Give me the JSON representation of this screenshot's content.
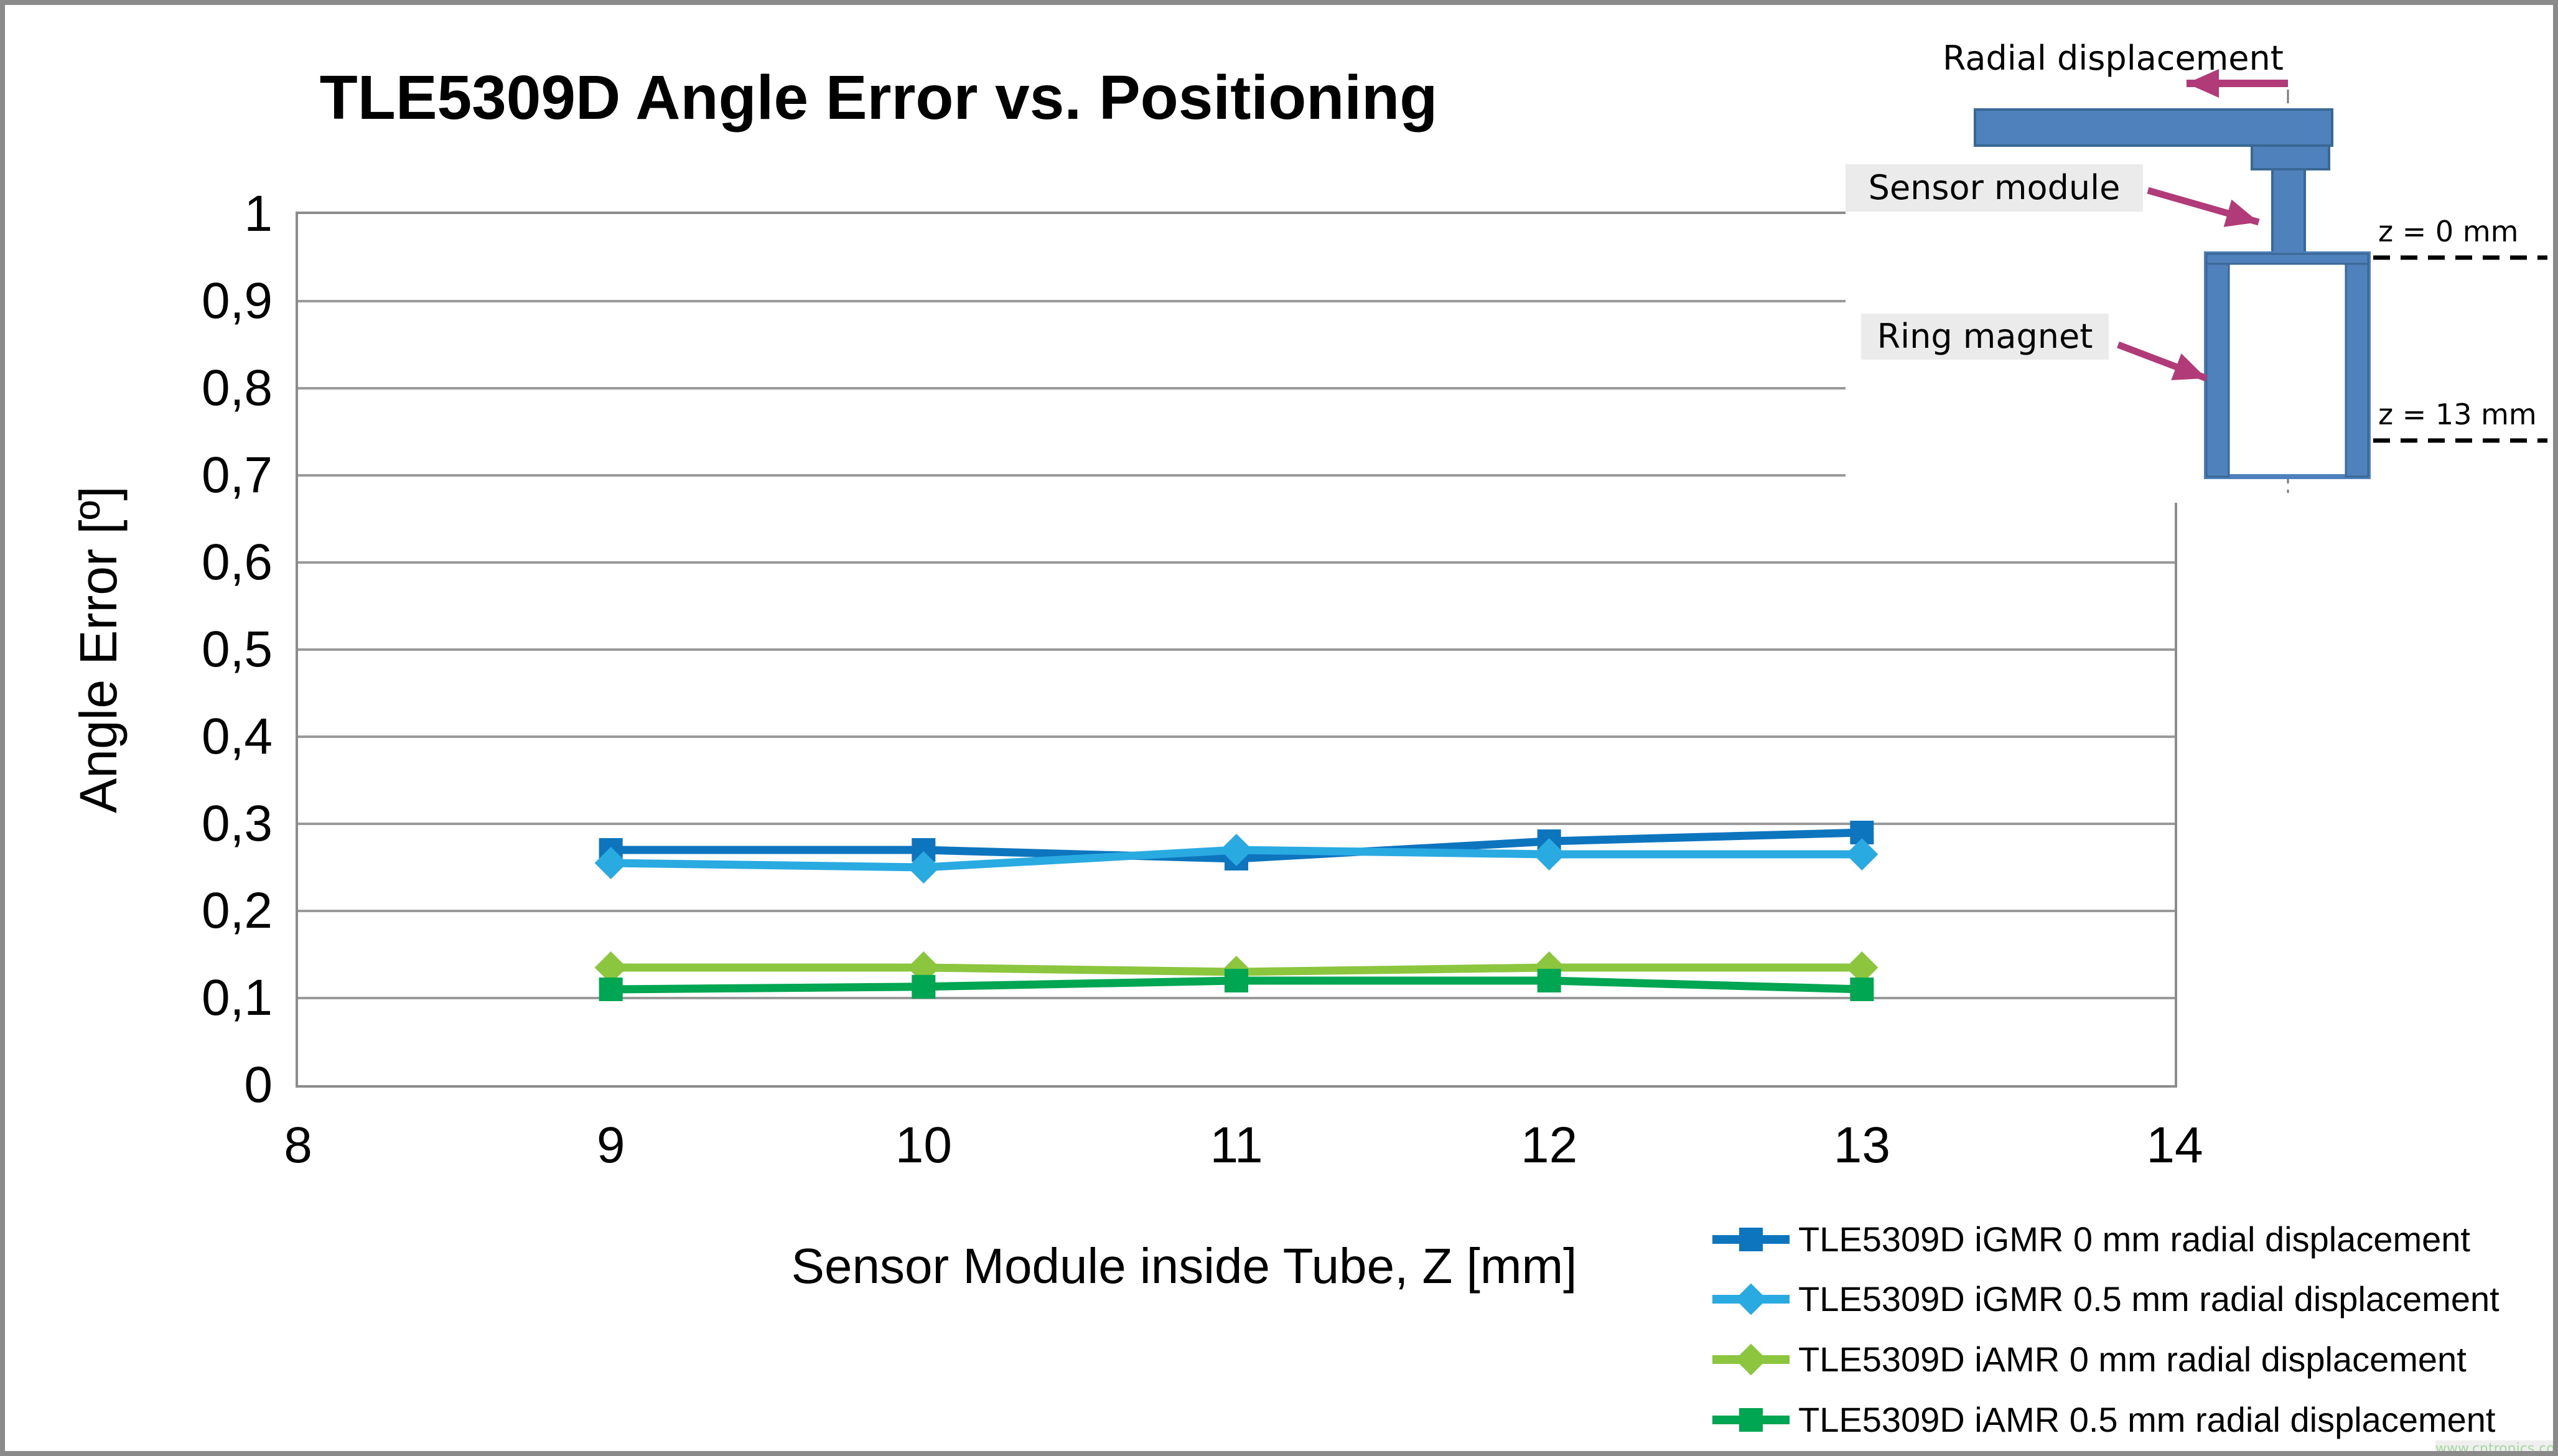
{
  "title": "TLE5309D Angle Error vs. Positioning",
  "watermark": "www.cntronics.com",
  "watermark_color": "#a6d7a0",
  "chart_data": {
    "type": "line",
    "title": "TLE5309D Angle Error vs. Positioning",
    "xlabel": "Sensor Module inside Tube, Z [mm]",
    "ylabel": "Angle Error [º]",
    "xlim": [
      8,
      14
    ],
    "ylim": [
      0,
      1
    ],
    "x_tick_labels": [
      "8",
      "9",
      "10",
      "11",
      "12",
      "13",
      "14"
    ],
    "x_ticks": [
      8,
      9,
      10,
      11,
      12,
      13,
      14
    ],
    "y_ticks": [
      0,
      0.1,
      0.2,
      0.3,
      0.4,
      0.5,
      0.6,
      0.7,
      0.8,
      0.9,
      1
    ],
    "y_tick_labels": [
      "0",
      "0,1",
      "0,2",
      "0,3",
      "0,4",
      "0,5",
      "0,6",
      "0,7",
      "0,8",
      "0,9",
      "1"
    ],
    "grid": "horizontal",
    "legend_position": "bottom-right",
    "x": [
      9,
      10,
      11,
      12,
      13
    ],
    "series": [
      {
        "name": "TLE5309D iGMR 0 mm radial displacement",
        "marker": "square",
        "color": "#0d74be",
        "values": [
          0.27,
          0.27,
          0.26,
          0.28,
          0.29
        ]
      },
      {
        "name": "TLE5309D iGMR 0.5 mm radial displacement",
        "marker": "diamond",
        "color": "#29abe2",
        "values": [
          0.255,
          0.25,
          0.27,
          0.265,
          0.265
        ]
      },
      {
        "name": "TLE5309D iAMR 0 mm radial displacement",
        "marker": "diamond",
        "color": "#8cc63f",
        "values": [
          0.135,
          0.135,
          0.13,
          0.135,
          0.135
        ]
      },
      {
        "name": "TLE5309D iAMR 0.5 mm radial displacement",
        "marker": "square",
        "color": "#00a651",
        "values": [
          0.11,
          0.113,
          0.12,
          0.12,
          0.11
        ]
      }
    ]
  },
  "diagram": {
    "radial_displacement_label": "Radial displacement",
    "sensor_module_label": "Sensor module",
    "ring_magnet_label": "Ring magnet",
    "z_top_label": "z = 0 mm",
    "z_bottom_label": "z = 13 mm",
    "colors": {
      "part_fill": "#4f81bd",
      "part_stroke": "#3a6894",
      "arrow": "#b13a78",
      "label_bg": "#ebebeb"
    }
  },
  "frame_color": "#8a8a8a",
  "gridline_color": "#9a9a9a"
}
